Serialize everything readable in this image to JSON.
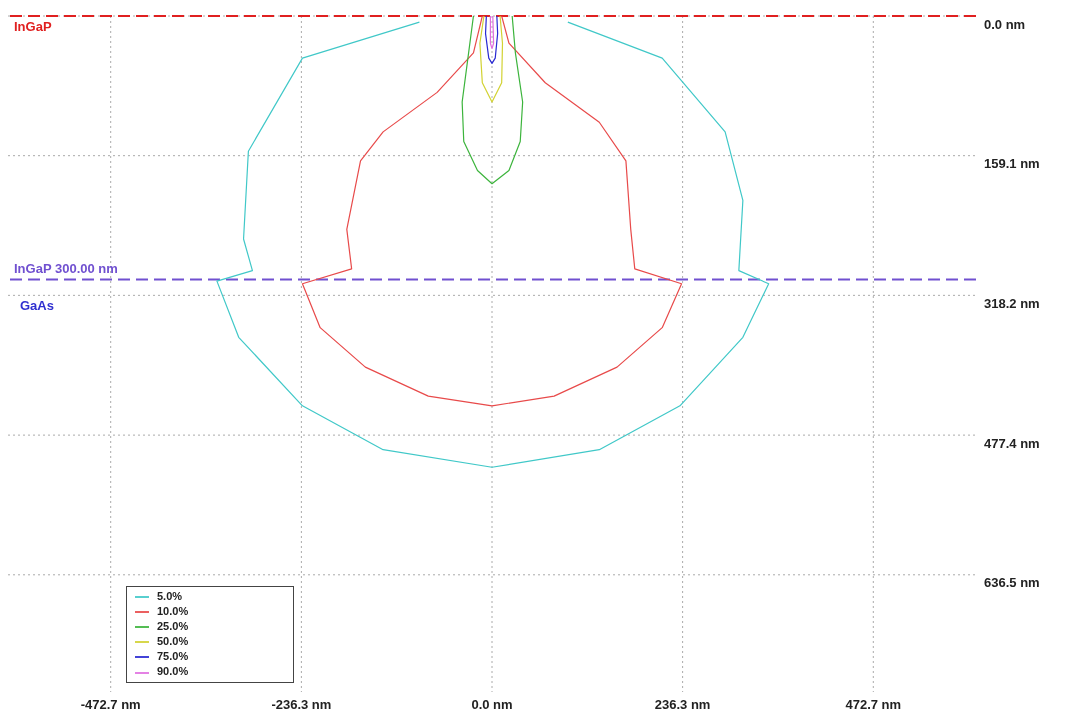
{
  "chart_data": {
    "type": "line",
    "xlim": [
      -600,
      600
    ],
    "ylim": [
      770,
      0
    ],
    "xticks": [
      {
        "value": -472.7,
        "label": "-472.7 nm"
      },
      {
        "value": -236.3,
        "label": "-236.3 nm"
      },
      {
        "value": 0,
        "label": "0.0 nm"
      },
      {
        "value": 236.3,
        "label": "236.3 nm"
      },
      {
        "value": 472.7,
        "label": "472.7 nm"
      }
    ],
    "yticks": [
      {
        "value": 0,
        "label": "0.0 nm"
      },
      {
        "value": 159.1,
        "label": "159.1 nm"
      },
      {
        "value": 318.2,
        "label": "318.2 nm"
      },
      {
        "value": 477.4,
        "label": "477.4 nm"
      },
      {
        "value": 636.5,
        "label": "636.5 nm"
      }
    ],
    "grid": true,
    "legend": "bottom left",
    "marker": "none",
    "line_style": "solid",
    "series": [
      {
        "name": "5.0%",
        "color": "#40c8c8",
        "x": [
          -90,
          -235,
          -302,
          -308,
          -297,
          -341,
          -314,
          -235,
          -135,
          0,
          133,
          233,
          311,
          343,
          306,
          311,
          289,
          211,
          94
        ],
        "values": [
          7,
          48,
          154,
          254,
          290,
          302,
          366,
          444,
          494,
          514,
          494,
          444,
          366,
          305,
          290,
          210,
          132,
          48,
          7
        ]
      },
      {
        "name": "10.0%",
        "color": "#e84a4a",
        "x": [
          -12,
          -23,
          -68,
          -135,
          -163,
          -180,
          -174,
          -235,
          -213,
          -157,
          -79,
          0,
          77,
          155,
          211,
          235,
          177,
          172,
          166,
          133,
          66,
          21,
          12
        ],
        "values": [
          0,
          42,
          87,
          132,
          165,
          243,
          288,
          305,
          355,
          400,
          433,
          444,
          433,
          400,
          355,
          305,
          288,
          243,
          165,
          121,
          76,
          31,
          0
        ]
      },
      {
        "name": "25.0%",
        "color": "#3cb43c",
        "x": [
          -23,
          -29,
          -37,
          -35,
          -18,
          0,
          21,
          35,
          38,
          29,
          25
        ],
        "values": [
          0,
          42,
          98,
          143,
          176,
          191,
          176,
          143,
          98,
          42,
          0
        ]
      },
      {
        "name": "50.0%",
        "color": "#d2d232",
        "x": [
          -10,
          -15,
          -12,
          0,
          12,
          13,
          10
        ],
        "values": [
          0,
          31,
          76,
          98,
          76,
          31,
          0
        ]
      },
      {
        "name": "75.0%",
        "color": "#2828d2",
        "x": [
          -7,
          -8,
          -4,
          0,
          4,
          7,
          6
        ],
        "values": [
          0,
          20,
          48,
          54,
          48,
          20,
          0
        ]
      },
      {
        "name": "90.0%",
        "color": "#e070e0",
        "x": [
          -2,
          -2,
          0,
          2,
          1
        ],
        "values": [
          0,
          31,
          37,
          31,
          0
        ]
      }
    ],
    "ref_lines": [
      {
        "axis": "y",
        "value": 0,
        "label": "InGaP",
        "color": "#e02020",
        "line_style": "dashed"
      },
      {
        "axis": "y",
        "value": 300,
        "label": "InGaP 300.00 nm",
        "color": "#7050d0",
        "line_style": "dashed"
      }
    ],
    "annotations": [
      "GaAs"
    ]
  }
}
